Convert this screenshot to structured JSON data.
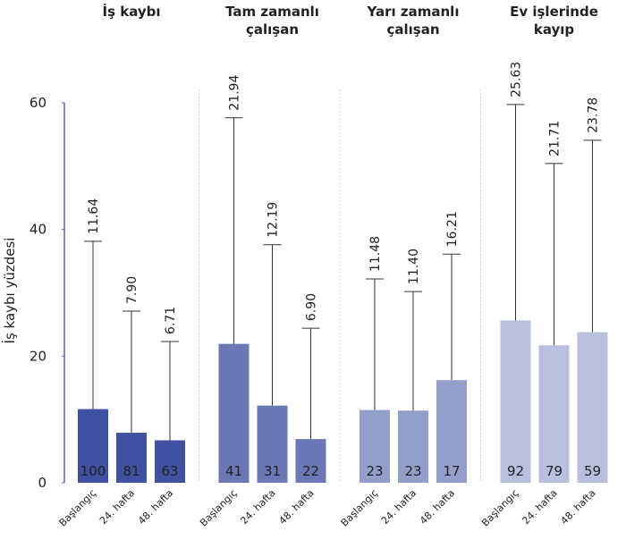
{
  "chart_data": {
    "type": "bar",
    "ylabel": "İş kaybı yüzdesi",
    "ylim": [
      0,
      60
    ],
    "yticks": [
      0,
      20,
      40,
      60
    ],
    "panels": [
      {
        "title": [
          "İş kaybı"
        ],
        "color": "#3f51a0",
        "categories": [
          "Başlangıç",
          "24. hafta",
          "48. hafta"
        ],
        "values": [
          11.64,
          7.9,
          6.71
        ],
        "value_labels": [
          "11.64",
          "7.90",
          "6.71"
        ],
        "errors": [
          26.5,
          19.2,
          15.6
        ],
        "n": [
          100,
          81,
          63
        ]
      },
      {
        "title": [
          "Tam zamanlı",
          "çalışan"
        ],
        "color": "#6b78b5",
        "categories": [
          "Başlangıç",
          "24. hafta",
          "48. hafta"
        ],
        "values": [
          21.94,
          12.19,
          6.9
        ],
        "value_labels": [
          "21.94",
          "12.19",
          "6.90"
        ],
        "errors": [
          35.7,
          25.4,
          17.5
        ],
        "n": [
          41,
          31,
          22
        ]
      },
      {
        "title": [
          "Yarı zamanlı",
          "çalışan"
        ],
        "color": "#949ecb",
        "categories": [
          "Başlangıç",
          "24. hafta",
          "48. hafta"
        ],
        "values": [
          11.48,
          11.4,
          16.21
        ],
        "value_labels": [
          "11.48",
          "11.40",
          "16.21"
        ],
        "errors": [
          20.7,
          18.8,
          19.9
        ],
        "n": [
          23,
          23,
          17
        ]
      },
      {
        "title": [
          "Ev işlerinde",
          "kayıp"
        ],
        "color": "#b9c0de",
        "categories": [
          "Başlangıç",
          "24. hafta",
          "48. hafta"
        ],
        "values": [
          25.63,
          21.71,
          23.78
        ],
        "value_labels": [
          "25.63",
          "21.71",
          "23.78"
        ],
        "errors": [
          34.1,
          28.7,
          30.3
        ],
        "n": [
          92,
          79,
          59
        ]
      }
    ]
  }
}
